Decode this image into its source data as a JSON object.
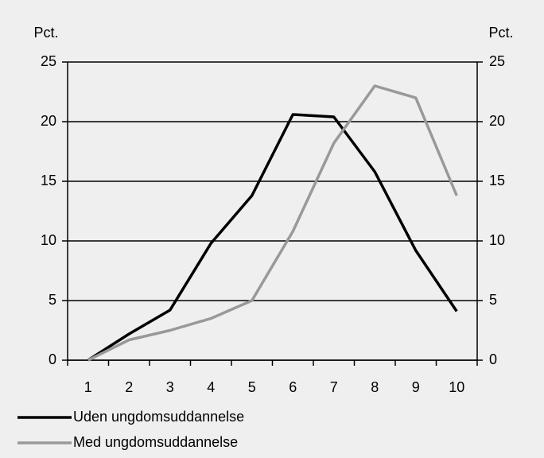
{
  "chart_data": {
    "type": "line",
    "y_axis_label": "Pct.",
    "y2_axis_label": "Pct.",
    "categories": [
      "1",
      "2",
      "3",
      "4",
      "5",
      "6",
      "7",
      "8",
      "9",
      "10"
    ],
    "series": [
      {
        "name": "Uden ungdomsuddannelse",
        "color": "#000000",
        "values": [
          0,
          2.2,
          4.2,
          9.8,
          13.8,
          20.6,
          20.4,
          15.8,
          9.2,
          4.1
        ]
      },
      {
        "name": "Med ungdomsuddannelse",
        "color": "#999999",
        "values": [
          0,
          1.7,
          2.5,
          3.5,
          5,
          10.8,
          18.2,
          23,
          22,
          13.8
        ]
      }
    ],
    "ylim": [
      0,
      25
    ],
    "yticks": [
      0,
      5,
      10,
      15,
      20,
      25
    ],
    "y2lim": [
      0,
      25
    ],
    "y2ticks": [
      0,
      5,
      10,
      15,
      20,
      25
    ],
    "grid": true,
    "legend": "bottom"
  }
}
